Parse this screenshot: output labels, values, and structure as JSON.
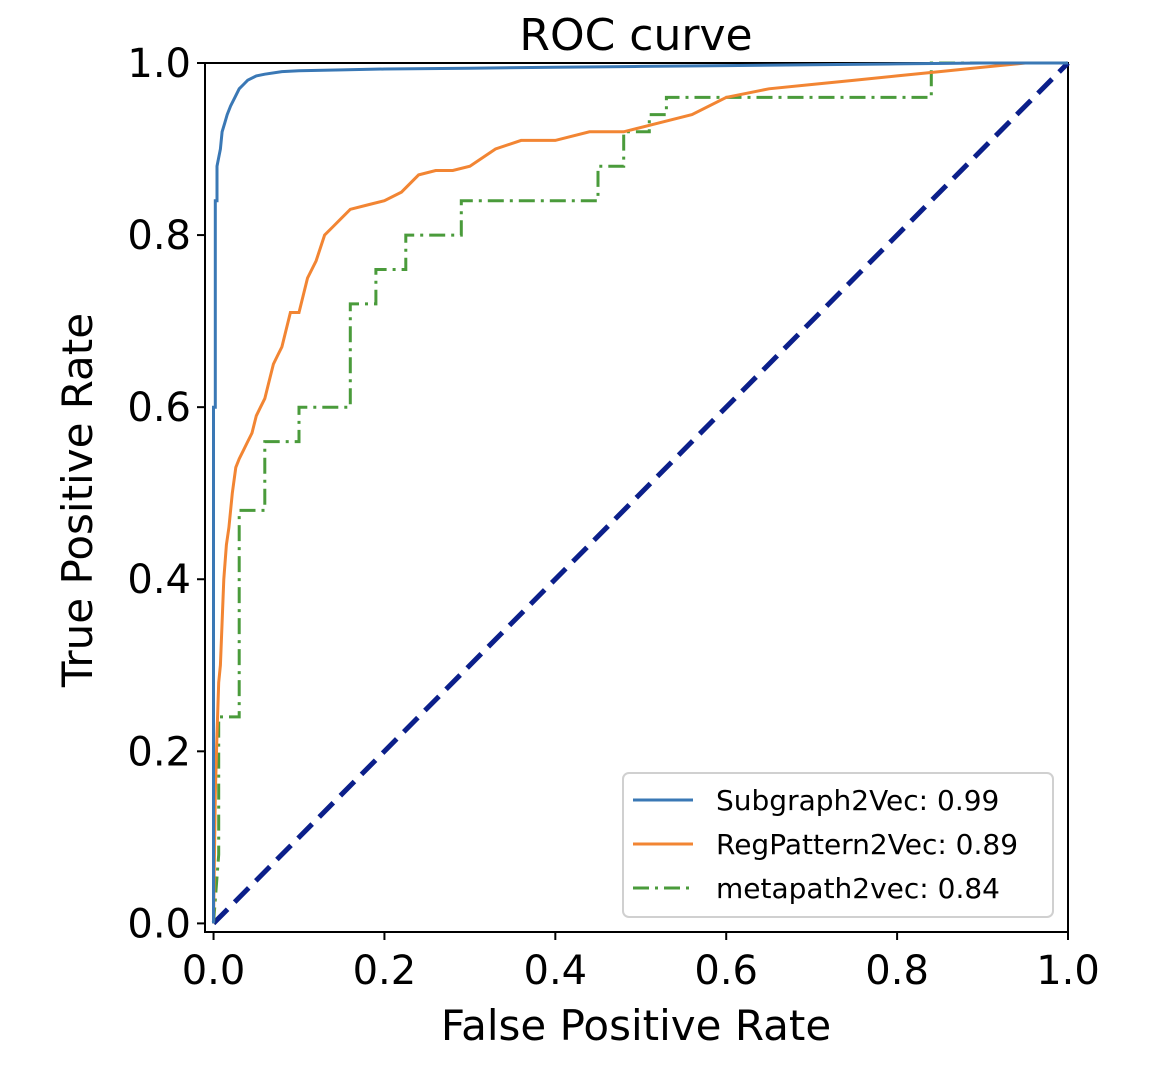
{
  "chart_data": {
    "type": "line",
    "title": "ROC curve",
    "xlabel": "False Positive Rate",
    "ylabel": "True Positive Rate",
    "xlim": [
      -0.01,
      1.0
    ],
    "ylim": [
      -0.01,
      1.0
    ],
    "xticks": [
      0.0,
      0.2,
      0.4,
      0.6,
      0.8,
      1.0
    ],
    "yticks": [
      0.0,
      0.2,
      0.4,
      0.6,
      0.8,
      1.0
    ],
    "xtick_labels": [
      "0.0",
      "0.2",
      "0.4",
      "0.6",
      "0.8",
      "1.0"
    ],
    "ytick_labels": [
      "0.0",
      "0.2",
      "0.4",
      "0.6",
      "0.8",
      "1.0"
    ],
    "grid": false,
    "legend_position": "lower-right",
    "series": [
      {
        "name": "Subgraph2Vec: 0.99",
        "color": "#3a78b5",
        "style": "solid",
        "x": [
          0.0,
          0.0,
          0.002,
          0.002,
          0.004,
          0.004,
          0.006,
          0.008,
          0.01,
          0.013,
          0.016,
          0.02,
          0.025,
          0.03,
          0.035,
          0.04,
          0.05,
          0.06,
          0.08,
          0.1,
          0.15,
          0.2,
          0.3,
          0.4,
          0.5,
          0.6,
          0.7,
          0.8,
          0.9,
          1.0
        ],
        "y": [
          0.0,
          0.6,
          0.6,
          0.84,
          0.84,
          0.88,
          0.89,
          0.9,
          0.92,
          0.93,
          0.94,
          0.95,
          0.96,
          0.97,
          0.975,
          0.98,
          0.985,
          0.987,
          0.99,
          0.991,
          0.992,
          0.993,
          0.994,
          0.995,
          0.996,
          0.997,
          0.998,
          0.999,
          1.0,
          1.0
        ]
      },
      {
        "name": "RegPattern2Vec: 0.89",
        "color": "#f28533",
        "style": "solid",
        "x": [
          0.0,
          0.002,
          0.004,
          0.006,
          0.008,
          0.01,
          0.012,
          0.015,
          0.018,
          0.022,
          0.026,
          0.03,
          0.035,
          0.04,
          0.045,
          0.05,
          0.055,
          0.06,
          0.065,
          0.07,
          0.075,
          0.08,
          0.09,
          0.1,
          0.11,
          0.12,
          0.13,
          0.14,
          0.15,
          0.16,
          0.18,
          0.2,
          0.22,
          0.24,
          0.26,
          0.28,
          0.3,
          0.33,
          0.36,
          0.4,
          0.44,
          0.48,
          0.52,
          0.56,
          0.6,
          0.65,
          0.7,
          0.75,
          0.8,
          0.85,
          0.9,
          0.95,
          1.0
        ],
        "y": [
          0.0,
          0.15,
          0.22,
          0.28,
          0.3,
          0.35,
          0.4,
          0.44,
          0.46,
          0.5,
          0.53,
          0.54,
          0.55,
          0.56,
          0.57,
          0.59,
          0.6,
          0.61,
          0.63,
          0.65,
          0.66,
          0.67,
          0.71,
          0.71,
          0.75,
          0.77,
          0.8,
          0.81,
          0.82,
          0.83,
          0.835,
          0.84,
          0.85,
          0.87,
          0.875,
          0.875,
          0.88,
          0.9,
          0.91,
          0.91,
          0.92,
          0.92,
          0.93,
          0.94,
          0.96,
          0.97,
          0.975,
          0.98,
          0.985,
          0.99,
          0.995,
          1.0,
          1.0
        ]
      },
      {
        "name": "metapath2vec: 0.84",
        "color": "#4a9b3b",
        "style": "dashdot",
        "x": [
          0.0,
          0.003,
          0.006,
          0.006,
          0.03,
          0.03,
          0.06,
          0.06,
          0.1,
          0.1,
          0.16,
          0.16,
          0.19,
          0.19,
          0.225,
          0.225,
          0.29,
          0.29,
          0.45,
          0.45,
          0.48,
          0.48,
          0.51,
          0.51,
          0.53,
          0.53,
          0.84,
          0.84,
          1.0
        ],
        "y": [
          0.0,
          0.04,
          0.08,
          0.24,
          0.24,
          0.48,
          0.48,
          0.56,
          0.56,
          0.6,
          0.6,
          0.72,
          0.72,
          0.76,
          0.76,
          0.8,
          0.8,
          0.84,
          0.84,
          0.88,
          0.88,
          0.92,
          0.92,
          0.94,
          0.94,
          0.96,
          0.96,
          1.0,
          1.0
        ]
      },
      {
        "name": "",
        "color": "#0b1f8a",
        "style": "dashed",
        "x": [
          0.0,
          1.0
        ],
        "y": [
          0.0,
          1.0
        ]
      }
    ],
    "legend_entries": [
      "Subgraph2Vec: 0.99",
      "RegPattern2Vec: 0.89",
      "metapath2vec: 0.84"
    ]
  }
}
